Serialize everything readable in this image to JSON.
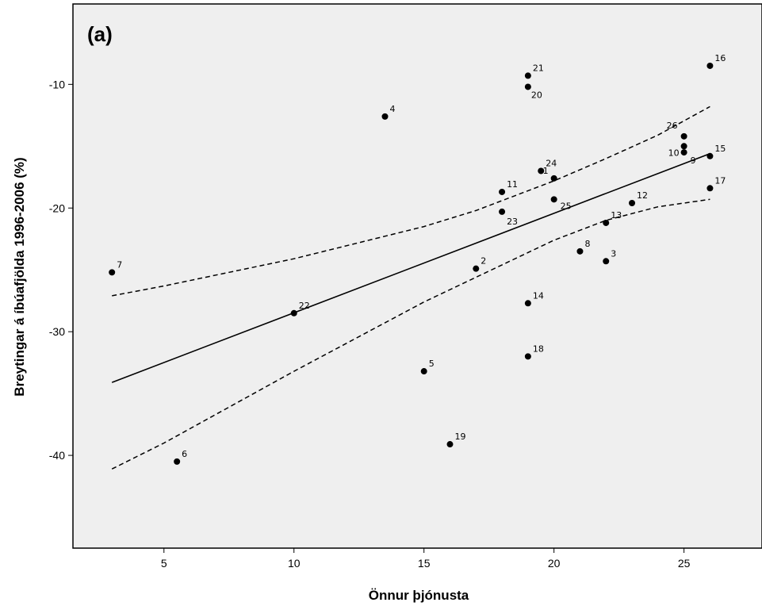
{
  "chart_data": {
    "type": "scatter",
    "panel_label": "(a)",
    "xlabel": "Önnur þjónusta",
    "ylabel": "Breytingar á íbúafjölda 1996-2006 (%)",
    "xlim": [
      1.5,
      28
    ],
    "ylim": [
      -47.5,
      -3.5
    ],
    "x_ticks": [
      5,
      10,
      15,
      20,
      25
    ],
    "y_ticks": [
      -10,
      -20,
      -30,
      -40
    ],
    "grid": false,
    "legend": "none",
    "colors": {
      "background": "#efefef",
      "points": "#000000",
      "fit_line": "#000000"
    },
    "points": [
      {
        "label": "7",
        "x": 3.0,
        "y": -25.2
      },
      {
        "label": "6",
        "x": 5.5,
        "y": -40.5
      },
      {
        "label": "22",
        "x": 10.0,
        "y": -28.5
      },
      {
        "label": "4",
        "x": 13.5,
        "y": -12.6
      },
      {
        "label": "5",
        "x": 15.0,
        "y": -33.2
      },
      {
        "label": "19",
        "x": 16.0,
        "y": -39.1
      },
      {
        "label": "2",
        "x": 17.0,
        "y": -24.9
      },
      {
        "label": "11",
        "x": 18.0,
        "y": -18.7
      },
      {
        "label": "23",
        "x": 18.0,
        "y": -20.3
      },
      {
        "label": "21",
        "x": 19.0,
        "y": -9.3
      },
      {
        "label": "20",
        "x": 19.0,
        "y": -10.2
      },
      {
        "label": "14",
        "x": 19.0,
        "y": -27.7
      },
      {
        "label": "18",
        "x": 19.0,
        "y": -32.0
      },
      {
        "label": "24",
        "x": 19.5,
        "y": -17.0
      },
      {
        "label": "1",
        "x": 20.0,
        "y": -17.6
      },
      {
        "label": "25",
        "x": 20.0,
        "y": -19.3
      },
      {
        "label": "8",
        "x": 21.0,
        "y": -23.5
      },
      {
        "label": "13",
        "x": 22.0,
        "y": -21.2
      },
      {
        "label": "3",
        "x": 22.0,
        "y": -24.3
      },
      {
        "label": "12",
        "x": 23.0,
        "y": -19.6
      },
      {
        "label": "26",
        "x": 25.0,
        "y": -14.2
      },
      {
        "label": "10",
        "x": 25.0,
        "y": -15.0
      },
      {
        "label": "9",
        "x": 25.0,
        "y": -15.5
      },
      {
        "label": "16",
        "x": 26.0,
        "y": -8.5
      },
      {
        "label": "15",
        "x": 26.0,
        "y": -15.8
      },
      {
        "label": "17",
        "x": 26.0,
        "y": -18.4
      }
    ],
    "fit_line": {
      "x": [
        3,
        26
      ],
      "y": [
        -34.1,
        -15.6
      ]
    },
    "ci_lower": {
      "x": [
        3,
        5,
        10,
        15,
        20,
        22,
        24,
        26
      ],
      "y": [
        -41.1,
        -39.0,
        -33.2,
        -27.6,
        -22.6,
        -21.0,
        -19.9,
        -19.3
      ]
    },
    "ci_upper": {
      "x": [
        3,
        5,
        10,
        15,
        17,
        20,
        22,
        24,
        26
      ],
      "y": [
        -27.1,
        -26.3,
        -24.1,
        -21.5,
        -20.2,
        -17.8,
        -16.0,
        -14.1,
        -11.8
      ]
    }
  }
}
